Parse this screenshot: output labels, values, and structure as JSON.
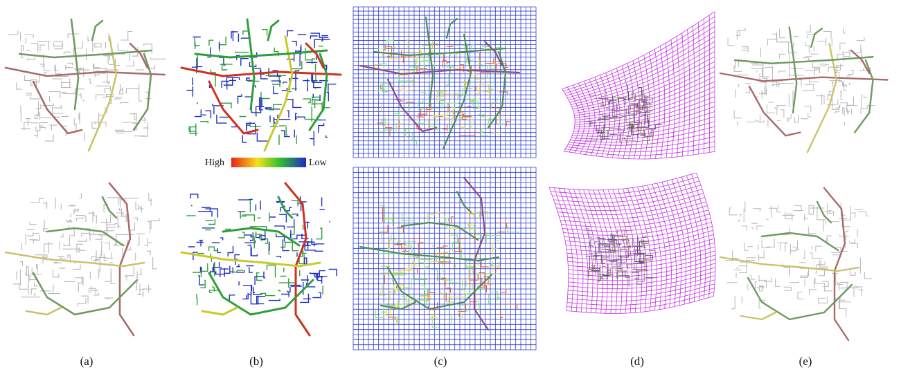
{
  "figure": {
    "captions": [
      "(a)",
      "(b)",
      "(c)",
      "(d)",
      "(e)"
    ],
    "legend": {
      "high_label": "High",
      "low_label": "Low",
      "gradient": [
        "#e8201a",
        "#f5e21c",
        "#2fbf2f",
        "#1f2ac4"
      ]
    },
    "colors": {
      "road_gray": "#b7b7b7",
      "road_green": "#6f9a62",
      "road_olive": "#c9c36a",
      "road_brown": "#a86a6a",
      "road_blue": "#2030c0",
      "road_green_b": "#2e9e3a",
      "road_yellow_b": "#c9c92a",
      "road_red_b": "#d0301e",
      "grid_blue": "#2d3ad6",
      "grid_magenta": "#c535e6"
    }
  }
}
